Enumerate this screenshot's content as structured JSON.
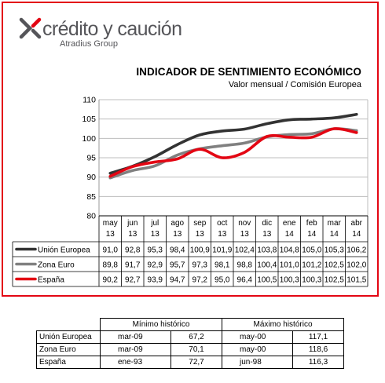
{
  "brand": {
    "name": "crédito y caución",
    "sub": "Atradius Group",
    "accent": "#e30613",
    "text_color": "#555559"
  },
  "chart_data": {
    "type": "line",
    "title": "INDICADOR DE SENTIMIENTO ECONÓMICO",
    "subtitle": "Valor mensual / Comisión Europea",
    "categories": [
      [
        "may",
        "13"
      ],
      [
        "jun",
        "13"
      ],
      [
        "jul",
        "13"
      ],
      [
        "ago",
        "13"
      ],
      [
        "sep",
        "13"
      ],
      [
        "oct",
        "13"
      ],
      [
        "nov",
        "13"
      ],
      [
        "dic",
        "13"
      ],
      [
        "ene",
        "14"
      ],
      [
        "feb",
        "14"
      ],
      [
        "mar",
        "14"
      ],
      [
        "abr",
        "14"
      ]
    ],
    "ylim": [
      80,
      110
    ],
    "yticks": [
      "80",
      "85",
      "90",
      "95",
      "100",
      "105",
      "110"
    ],
    "grid": true,
    "legend": "table-below",
    "series": [
      {
        "name": "Unión Europea",
        "color": "#333333",
        "values": [
          91.0,
          92.8,
          95.3,
          98.4,
          100.9,
          101.9,
          102.4,
          103.8,
          104.8,
          105.0,
          105.3,
          106.2
        ],
        "labels": [
          "91,0",
          "92,8",
          "95,3",
          "98,4",
          "100,9",
          "101,9",
          "102,4",
          "103,8",
          "104,8",
          "105,0",
          "105,3",
          "106,2"
        ]
      },
      {
        "name": "Zona Euro",
        "color": "#808080",
        "values": [
          89.8,
          91.7,
          92.9,
          95.7,
          97.3,
          98.1,
          98.8,
          100.4,
          101.0,
          101.2,
          102.5,
          102.0
        ],
        "labels": [
          "89,8",
          "91,7",
          "92,9",
          "95,7",
          "97,3",
          "98,1",
          "98,8",
          "100,4",
          "101,0",
          "101,2",
          "102,5",
          "102,0"
        ]
      },
      {
        "name": "España",
        "color": "#e30613",
        "values": [
          90.2,
          92.7,
          93.9,
          94.7,
          97.2,
          95.0,
          96.4,
          100.5,
          100.3,
          100.3,
          102.5,
          101.5
        ],
        "labels": [
          "90,2",
          "92,7",
          "93,9",
          "94,7",
          "97,2",
          "95,0",
          "96,4",
          "100,5",
          "100,3",
          "100,3",
          "102,5",
          "101,5"
        ]
      }
    ]
  },
  "stats_table": {
    "headers": {
      "min": "Mínimo histórico",
      "max": "Máximo histórico"
    },
    "rows": [
      {
        "name": "Unión Europea",
        "min_date": "mar-09",
        "min_value": "67,2",
        "max_date": "may-00",
        "max_value": "117,1"
      },
      {
        "name": "Zona Euro",
        "min_date": "mar-09",
        "min_value": "70,1",
        "max_date": "may-00",
        "max_value": "118,6"
      },
      {
        "name": "España",
        "min_date": "ene-93",
        "min_value": "72,7",
        "max_date": "jun-98",
        "max_value": "116,3"
      }
    ]
  }
}
